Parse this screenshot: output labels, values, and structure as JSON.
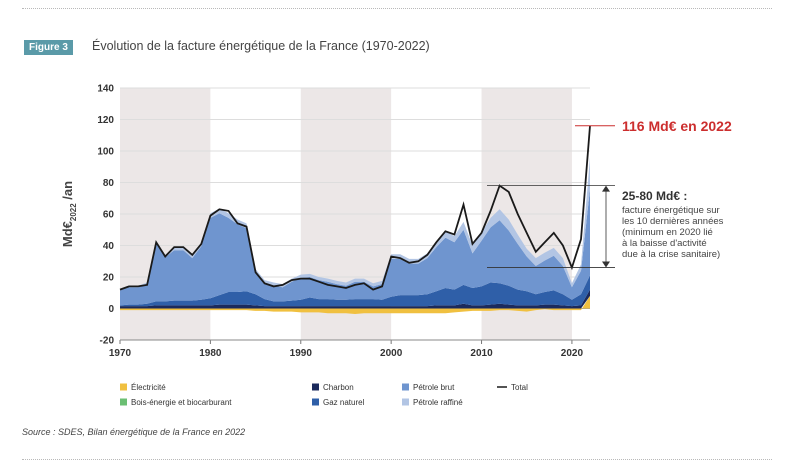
{
  "figure": {
    "label": "Figure 3",
    "title": "Évolution de la facture énergétique de la France (1970-2022)",
    "source": "Source : SDES, Bilan énergétique de la France en 2022"
  },
  "chart_data": {
    "type": "area",
    "ylabel": "Md€",
    "ylabel_sub": "2022",
    "ylabel_unit": "/an",
    "xlim": [
      1970,
      2022
    ],
    "ylim": [
      -20,
      140
    ],
    "x_ticks": [
      1970,
      1980,
      1990,
      2000,
      2010,
      2020
    ],
    "y_ticks": [
      -20,
      0,
      20,
      40,
      60,
      80,
      100,
      120,
      140
    ],
    "shaded_decades": [
      [
        1970,
        1980
      ],
      [
        1990,
        2000
      ],
      [
        2010,
        2020
      ]
    ],
    "stacked": true,
    "x": [
      1970,
      1971,
      1972,
      1973,
      1974,
      1975,
      1976,
      1977,
      1978,
      1979,
      1980,
      1981,
      1982,
      1983,
      1984,
      1985,
      1986,
      1987,
      1988,
      1989,
      1990,
      1991,
      1992,
      1993,
      1994,
      1995,
      1996,
      1997,
      1998,
      1999,
      2000,
      2001,
      2002,
      2003,
      2004,
      2005,
      2006,
      2007,
      2008,
      2009,
      2010,
      2011,
      2012,
      2013,
      2014,
      2015,
      2016,
      2017,
      2018,
      2019,
      2020,
      2021,
      2022
    ],
    "series": [
      {
        "name": "Électricité",
        "color": "#f0c040",
        "values": [
          -1,
          -1,
          -1,
          -1,
          -1,
          -1,
          -1,
          -1,
          -1,
          -1,
          -1,
          -1,
          -1,
          -1,
          -1,
          -1.5,
          -1.5,
          -2,
          -2,
          -2,
          -2.5,
          -2.5,
          -2.5,
          -3,
          -3,
          -3,
          -3.5,
          -3,
          -3,
          -3,
          -3,
          -3,
          -3,
          -3,
          -3,
          -3,
          -3,
          -2.5,
          -2,
          -1.5,
          -1.5,
          -1.5,
          -1,
          -1,
          -1.5,
          -2,
          -1,
          -0.5,
          -1,
          -1,
          -1,
          -1,
          8
        ]
      },
      {
        "name": "Bois-énergie et biocarburant",
        "color": "#6bbf73",
        "values": [
          0,
          0,
          0,
          0,
          0,
          0,
          0,
          0,
          0,
          0,
          0,
          0,
          0,
          0,
          0,
          0,
          0,
          0,
          0,
          0,
          0,
          0,
          0,
          0,
          0,
          0,
          0,
          0,
          0,
          0,
          0,
          0,
          0,
          0,
          0,
          0,
          0,
          0,
          0,
          0,
          0,
          0,
          0,
          0,
          0,
          0,
          0,
          0,
          0,
          0,
          0,
          0,
          0
        ]
      },
      {
        "name": "Charbon",
        "color": "#1b2a5c",
        "values": [
          1.5,
          1.5,
          1.5,
          1.5,
          2,
          2,
          2,
          2,
          2,
          2,
          2,
          2.5,
          2.5,
          2.5,
          2.5,
          2,
          1.5,
          1.5,
          1.5,
          1.5,
          1.5,
          1.5,
          1.5,
          1.5,
          1.5,
          1.5,
          1.5,
          1.5,
          1.5,
          1.5,
          1.5,
          1.5,
          1.5,
          1.5,
          1.5,
          2,
          2,
          2,
          3,
          2,
          2,
          2.5,
          3,
          2.5,
          2,
          2,
          2,
          2.5,
          2.5,
          2,
          1.5,
          2,
          4
        ]
      },
      {
        "name": "Gaz naturel",
        "color": "#2f5fa8",
        "values": [
          0.5,
          1,
          1,
          1.5,
          2.5,
          2.5,
          3,
          3,
          3,
          3.5,
          4.5,
          6,
          8,
          8,
          8.5,
          7,
          4.5,
          3,
          3,
          3.5,
          4,
          5.5,
          4.5,
          4.5,
          4,
          4,
          4.5,
          4.5,
          4.5,
          4,
          6,
          7,
          7,
          7,
          7.5,
          9,
          11,
          10,
          12,
          11,
          12,
          14,
          13,
          12,
          10,
          9,
          7,
          8,
          9,
          7,
          4,
          7,
          9
        ]
      },
      {
        "name": "Pétrole brut",
        "color": "#6f95cf",
        "values": [
          9.5,
          11,
          11,
          12,
          37,
          28,
          32,
          32,
          27,
          34,
          51,
          52,
          47,
          43,
          40,
          14,
          10,
          10,
          9,
          12,
          14,
          13,
          12,
          11,
          10,
          9,
          11,
          11,
          8,
          10,
          24,
          23,
          20,
          20,
          23,
          28,
          32,
          30,
          35,
          22,
          29,
          35,
          40,
          35,
          29,
          22,
          18,
          20,
          22,
          18,
          8,
          15,
          55
        ]
      },
      {
        "name": "Pétrole raffiné",
        "color": "#b2c5e4",
        "values": [
          1,
          1,
          1,
          1.5,
          1.5,
          1.5,
          2,
          2,
          2,
          2,
          3,
          3,
          3,
          3,
          3,
          2,
          2,
          2,
          2,
          2,
          2,
          2,
          2,
          2,
          2,
          2,
          2,
          2,
          2,
          2,
          3,
          3,
          3,
          3,
          3,
          3,
          4,
          4,
          5,
          5,
          5,
          6,
          7,
          7,
          6,
          5,
          5,
          5,
          5,
          5,
          2.5,
          4,
          20
        ]
      }
    ],
    "total": {
      "name": "Total",
      "color": "#1a1a1a",
      "values": [
        12,
        14,
        14,
        15,
        42,
        33,
        39,
        39,
        34,
        41,
        59,
        63,
        62,
        54,
        52,
        23,
        16,
        14,
        15,
        18,
        19,
        19,
        17,
        15,
        14,
        13,
        15,
        16,
        12,
        14,
        33,
        32,
        29,
        30,
        34,
        42,
        49,
        47,
        66,
        41,
        48,
        62,
        78,
        74,
        60,
        48,
        36,
        42,
        48,
        40,
        26,
        44,
        116
      ]
    },
    "annotations": {
      "peak": "116 Md€ en 2022",
      "range_title": "25-80 Md€ :",
      "range_lines": [
        "facture énergétique sur",
        "les 10 dernières années",
        "(minimum en 2020 lié",
        "à la baisse d'activité",
        "due à la crise sanitaire)"
      ]
    },
    "legend": [
      {
        "name": "Électricité",
        "kind": "swatch",
        "color": "#f0c040"
      },
      {
        "name": "Bois-énergie et biocarburant",
        "kind": "swatch",
        "color": "#6bbf73"
      },
      {
        "name": "Charbon",
        "kind": "swatch",
        "color": "#1b2a5c"
      },
      {
        "name": "Gaz naturel",
        "kind": "swatch",
        "color": "#2f5fa8"
      },
      {
        "name": "Pétrole brut",
        "kind": "swatch",
        "color": "#6f95cf"
      },
      {
        "name": "Pétrole raffiné",
        "kind": "swatch",
        "color": "#b2c5e4"
      },
      {
        "name": "Total",
        "kind": "line",
        "color": "#1a1a1a"
      }
    ],
    "colors": {
      "shade": "#ece7e7",
      "annotation_red": "#cc2e2e",
      "badge": "#5a9aa8"
    }
  }
}
